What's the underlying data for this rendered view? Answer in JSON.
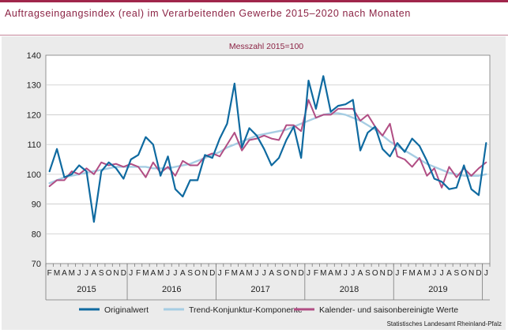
{
  "title": "Auftragseingangsindex (real) im Verarbeitenden Gewerbe 2015–2020 nach Monaten",
  "source": "Statistisches Landesamt Rheinland-Pfalz",
  "colors": {
    "original": "#0f6aa0",
    "trend": "#a6cde3",
    "saison": "#b14e84",
    "accent": "#8b2344"
  },
  "chart_data": {
    "type": "line",
    "subtitle": "Messzahl 2015=100",
    "ylim": [
      70,
      140
    ],
    "yticks": [
      70,
      80,
      90,
      100,
      110,
      120,
      130,
      140
    ],
    "grid": true,
    "legend_position": "bottom",
    "x": [
      "F",
      "M",
      "A",
      "M",
      "J",
      "J",
      "A",
      "S",
      "O",
      "N",
      "D",
      "J",
      "F",
      "M",
      "A",
      "M",
      "J",
      "J",
      "A",
      "S",
      "O",
      "N",
      "D",
      "J",
      "F",
      "M",
      "A",
      "M",
      "J",
      "J",
      "A",
      "S",
      "O",
      "N",
      "D",
      "J",
      "F",
      "M",
      "A",
      "M",
      "J",
      "J",
      "A",
      "S",
      "O",
      "N",
      "D",
      "J",
      "F",
      "M",
      "A",
      "M",
      "J",
      "J",
      "A",
      "S",
      "O",
      "N",
      "D",
      "J"
    ],
    "years": [
      {
        "label": "2015",
        "from": 0,
        "to": 10
      },
      {
        "label": "2016",
        "from": 11,
        "to": 22
      },
      {
        "label": "2017",
        "from": 23,
        "to": 34
      },
      {
        "label": "2018",
        "from": 35,
        "to": 46
      },
      {
        "label": "2019",
        "from": 47,
        "to": 58
      }
    ],
    "series": [
      {
        "name": "Originalwert",
        "color": "#0f6aa0",
        "values": [
          101,
          108.5,
          99,
          100,
          103,
          101,
          84,
          101,
          104,
          102,
          98.5,
          105,
          106.5,
          112.5,
          110,
          99.5,
          106,
          95,
          92.5,
          98,
          98,
          106.5,
          105.5,
          112,
          117,
          130.5,
          109,
          115.5,
          113,
          108.5,
          103,
          105.5,
          111.5,
          116,
          105.5,
          131.5,
          122,
          133,
          121,
          123,
          123.5,
          125,
          108,
          114,
          116,
          108.5,
          106,
          110.5,
          107.5,
          112,
          109.5,
          104.5,
          98.5,
          97.5,
          95,
          95.5,
          103,
          95,
          93,
          110.5
        ]
      },
      {
        "name": "Trend-Konjunktur-Komponente",
        "color": "#a6cde3",
        "values": [
          97,
          98,
          99,
          99.5,
          100,
          100.5,
          101,
          101.5,
          102,
          102.5,
          102.5,
          102.5,
          102.5,
          102.5,
          102,
          102,
          102,
          102.5,
          103,
          103.5,
          104.5,
          105.5,
          106.5,
          107.5,
          109,
          110,
          111,
          112,
          113,
          113.5,
          114,
          114.5,
          115,
          116,
          117,
          118,
          119,
          120,
          120.5,
          120.5,
          120,
          119,
          118,
          116.5,
          115,
          113,
          111,
          109.5,
          108,
          106.5,
          105,
          103.5,
          102.5,
          101.5,
          100.5,
          100,
          99.5,
          99.5,
          99.5,
          100
        ]
      },
      {
        "name": "Kalender- und saisonbereinigte Werte",
        "color": "#b14e84",
        "values": [
          96,
          98,
          98,
          101,
          100,
          102,
          100,
          104,
          103,
          103.5,
          102.5,
          103.5,
          102.5,
          99,
          104,
          100.5,
          102.5,
          99.5,
          104.5,
          103,
          103,
          106,
          107,
          106,
          110,
          114,
          108,
          111.5,
          112,
          113,
          112,
          111.5,
          116.5,
          116.5,
          114.5,
          125,
          119,
          120,
          120,
          122,
          122,
          122,
          118,
          120,
          116,
          113,
          117,
          106,
          105,
          102.5,
          105.5,
          99.5,
          102,
          95.5,
          102.5,
          99,
          102,
          99.5,
          102,
          104
        ]
      }
    ]
  }
}
